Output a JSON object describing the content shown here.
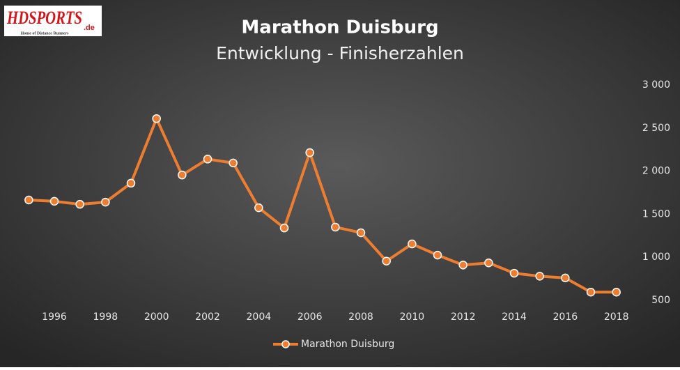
{
  "chart_data": {
    "type": "line",
    "title": "Marathon Duisburg",
    "subtitle": "Entwicklung - Finisherzahlen",
    "logo": {
      "main": "HDSPORTS",
      "suffix": ".de",
      "tagline": "Home of Distance Runners"
    },
    "x": [
      1995,
      1996,
      1997,
      1998,
      1999,
      2000,
      2001,
      2002,
      2003,
      2004,
      2005,
      2006,
      2007,
      2008,
      2009,
      2010,
      2011,
      2012,
      2013,
      2014,
      2015,
      2016,
      2017,
      2018
    ],
    "series": [
      {
        "name": "Marathon Duisburg",
        "color": "#ed7d31",
        "values": [
          1665,
          1650,
          1615,
          1640,
          1860,
          2610,
          1955,
          2140,
          2095,
          1575,
          1340,
          2215,
          1350,
          1285,
          955,
          1155,
          1025,
          910,
          935,
          815,
          780,
          760,
          595,
          595
        ]
      }
    ],
    "xlim": [
      1994.5,
      2018.5
    ],
    "xticks": [
      1996,
      1998,
      2000,
      2002,
      2004,
      2006,
      2008,
      2010,
      2012,
      2014,
      2016,
      2018
    ],
    "ylim": [
      500,
      3000
    ],
    "yticks": [
      500,
      {
        "value": 1000,
        "label": "1 000"
      },
      {
        "value": 1500,
        "label": "1 500"
      },
      {
        "value": 2000,
        "label": "2 000"
      },
      {
        "value": 2500,
        "label": "2 500"
      },
      {
        "value": 3000,
        "label": "3 000"
      }
    ],
    "y_axis_side": "right",
    "grid": false,
    "legend": "bottom"
  }
}
